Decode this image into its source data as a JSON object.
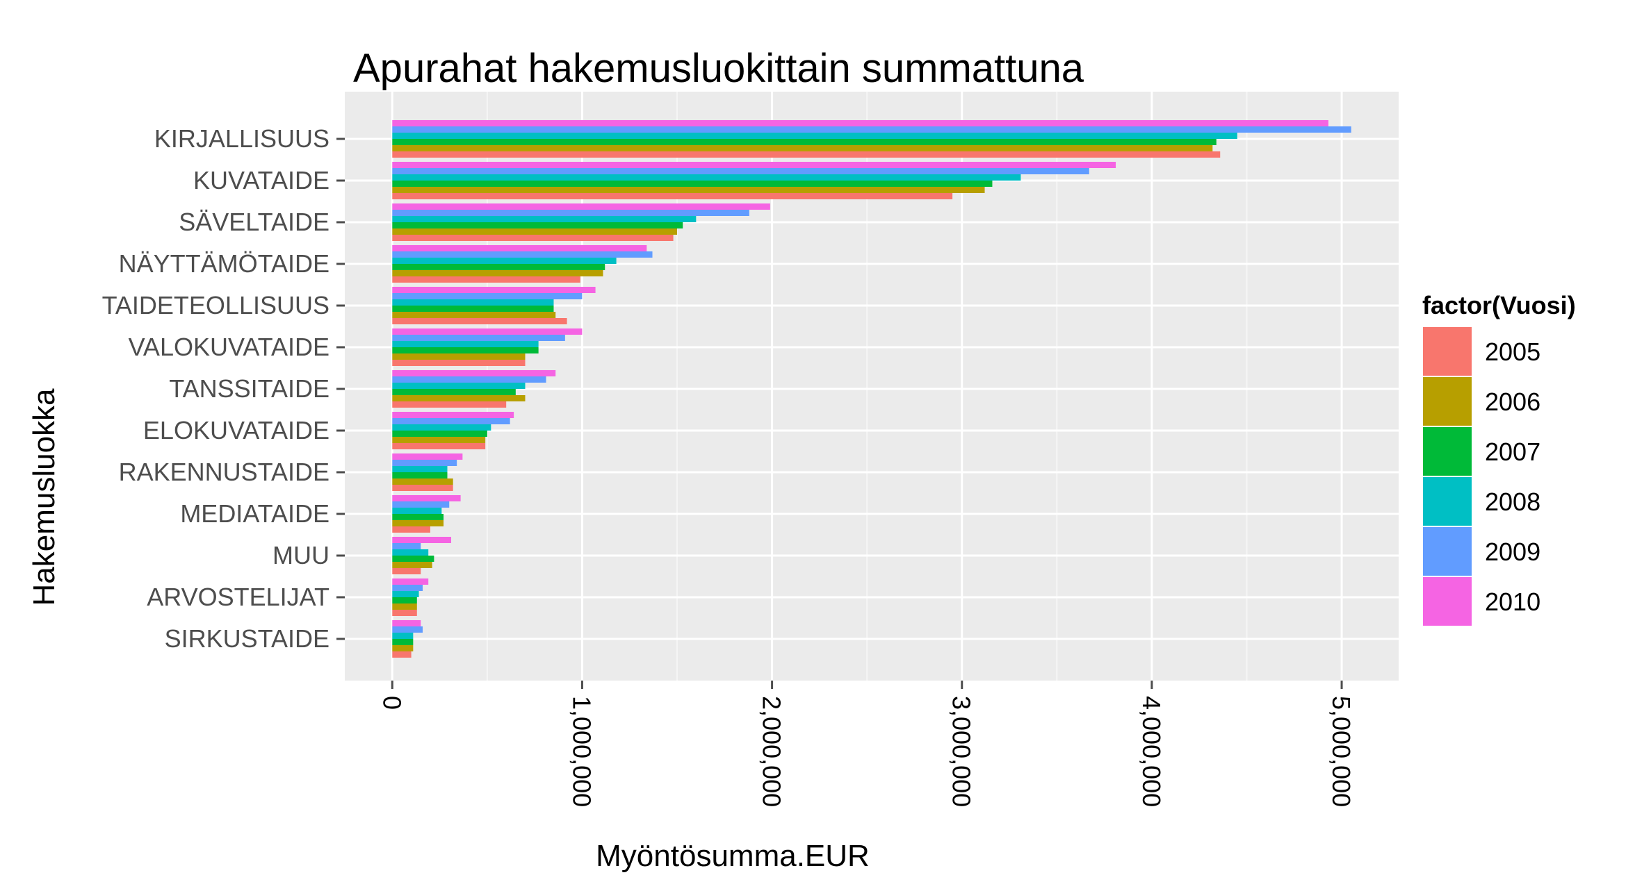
{
  "chart_data": {
    "type": "bar",
    "orientation": "horizontal",
    "title": "Apurahat hakemusluokittain summattuna",
    "xlabel": "Myöntösumma.EUR",
    "ylabel": "Hakemusluokka",
    "xlim": [
      -250000,
      5300000
    ],
    "x_ticks": [
      0,
      1000000,
      2000000,
      3000000,
      4000000,
      5000000
    ],
    "x_tick_labels": [
      "0",
      "1,000,000",
      "2,000,000",
      "3,000,000",
      "4,000,000",
      "5,000,000"
    ],
    "grid": true,
    "legend": {
      "title": "factor(Vuosi)",
      "position": "right"
    },
    "categories": [
      "KIRJALLISUUS",
      "KUVATAIDE",
      "SÄVELTAIDE",
      "NÄYTTÄMÖTAIDE",
      "TAIDETEOLLISUUS",
      "VALOKUVATAIDE",
      "TANSSITAIDE",
      "ELOKUVATAIDE",
      "RAKENNUSTAIDE",
      "MEDIATAIDE",
      "MUU",
      "ARVOSTELIJAT",
      "SIRKUSTAIDE"
    ],
    "series": [
      {
        "name": "2005",
        "color": "#F8766D",
        "values": [
          4360000,
          2950000,
          1480000,
          990000,
          920000,
          700000,
          600000,
          490000,
          320000,
          200000,
          150000,
          130000,
          100000
        ]
      },
      {
        "name": "2006",
        "color": "#B79F00",
        "values": [
          4320000,
          3120000,
          1500000,
          1110000,
          860000,
          700000,
          700000,
          490000,
          320000,
          270000,
          210000,
          130000,
          110000
        ]
      },
      {
        "name": "2007",
        "color": "#00BA38",
        "values": [
          4340000,
          3160000,
          1530000,
          1120000,
          850000,
          770000,
          650000,
          500000,
          290000,
          270000,
          220000,
          130000,
          110000
        ]
      },
      {
        "name": "2008",
        "color": "#00BFC4",
        "values": [
          4450000,
          3310000,
          1600000,
          1180000,
          850000,
          770000,
          700000,
          520000,
          290000,
          260000,
          190000,
          140000,
          110000
        ]
      },
      {
        "name": "2009",
        "color": "#619CFF",
        "values": [
          5050000,
          3670000,
          1880000,
          1370000,
          1000000,
          910000,
          810000,
          620000,
          340000,
          300000,
          150000,
          160000,
          160000
        ]
      },
      {
        "name": "2010",
        "color": "#F564E3",
        "values": [
          4930000,
          3810000,
          1990000,
          1340000,
          1070000,
          1000000,
          860000,
          640000,
          370000,
          360000,
          310000,
          190000,
          150000
        ]
      }
    ]
  },
  "colors": {
    "panel_background": "#EBEBEB",
    "grid_major": "#FFFFFF",
    "grid_minor": "#F5F5F5",
    "tick_color": "#4d4d4d"
  }
}
